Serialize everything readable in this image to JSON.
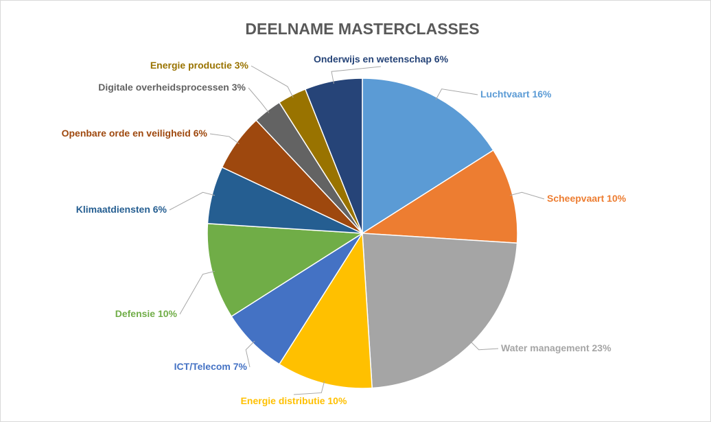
{
  "chart_data": {
    "type": "pie",
    "title": "DEELNAME MASTERCLASSES",
    "categories": [
      "Luchtvaart",
      "Scheepvaart",
      "Water management",
      "Energie distributie",
      "ICT/Telecom",
      "Defensie",
      "Klimaatdiensten",
      "Openbare orde en veiligheid",
      "Digitale overheidsprocessen",
      "Energie productie",
      "Onderwijs en wetenschap"
    ],
    "values": [
      16,
      10,
      23,
      10,
      7,
      10,
      6,
      6,
      3,
      3,
      6
    ],
    "value_labels": [
      "16%",
      "10%",
      "23%",
      "10%",
      "7%",
      "10%",
      "6%",
      "6%",
      "3%",
      "3%",
      "6%"
    ],
    "colors": [
      "#5b9bd5",
      "#ed7d31",
      "#a5a5a5",
      "#ffc000",
      "#4472c4",
      "#70ad47",
      "#255e91",
      "#9e480e",
      "#636363",
      "#997300",
      "#264478"
    ]
  }
}
